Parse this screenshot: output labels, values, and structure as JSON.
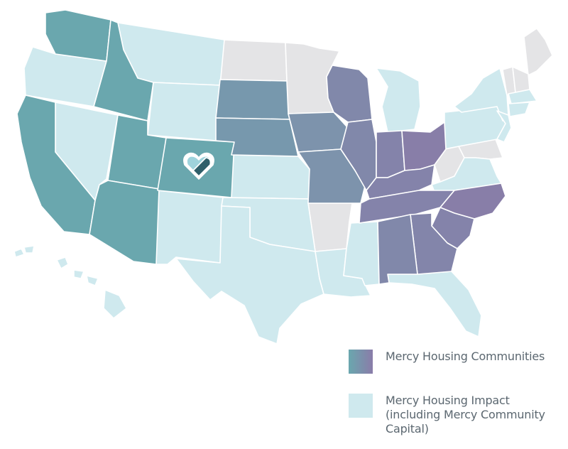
{
  "colors": {
    "communities_west": "#6aa7ae",
    "communities_mid": "#7e95ab",
    "communities_east": "#877fa8",
    "impact": "#cfe9ee",
    "none": "#e4e4e6",
    "logo_dark": "#2f5f6a",
    "logo_light": "#9fd3dc"
  },
  "logo_icon": "heart-logo-icon",
  "legend": {
    "communities_label": "Mercy Housing Communities",
    "impact_label": "Mercy Housing Impact\n(including Mercy Community\nCapital)"
  }
}
